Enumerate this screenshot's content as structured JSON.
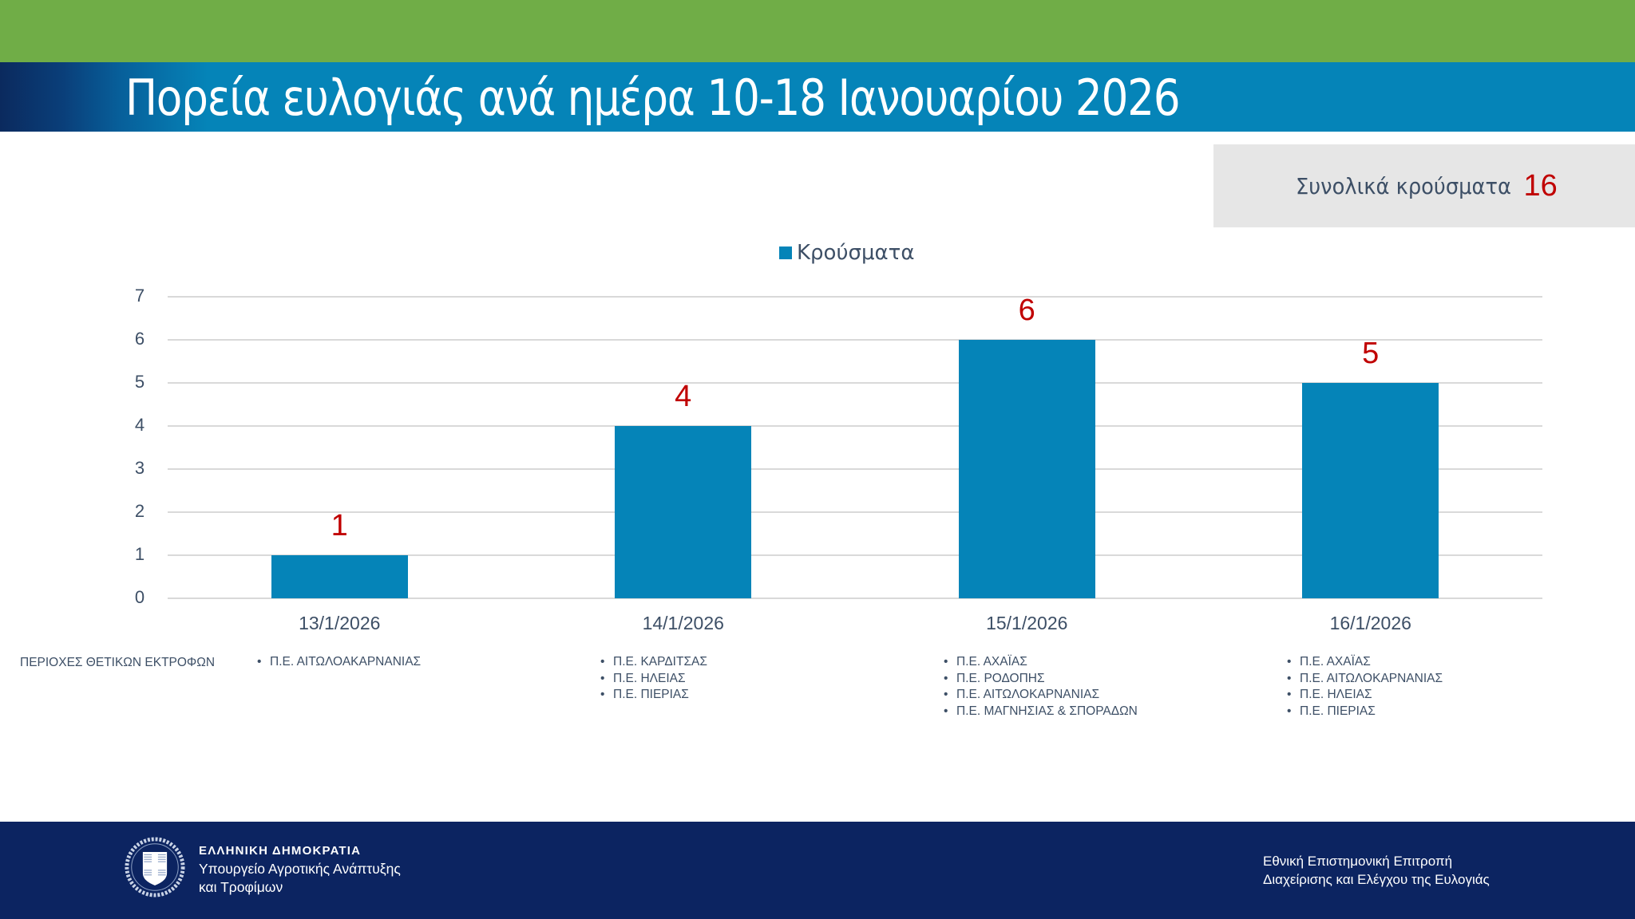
{
  "header": {
    "title": "Πορεία ευλογιάς ανά ημέρα 10-18 Ιανουαρίου 2026"
  },
  "summary": {
    "label": "Συνολικά κρούσματα",
    "value": "16"
  },
  "colors": {
    "top_band": "#70ad47",
    "title_band": "#0584b8",
    "bar": "#0584b8",
    "data_label": "#c00000",
    "footer": "#0c2461",
    "summary_box": "#e6e6e6"
  },
  "chart_data": {
    "type": "bar",
    "title": "",
    "legend": [
      "Κρούσματα"
    ],
    "legend_position": "top",
    "categories": [
      "13/1/2026",
      "14/1/2026",
      "15/1/2026",
      "16/1/2026"
    ],
    "series": [
      {
        "name": "Κρούσματα",
        "values": [
          1,
          4,
          6,
          5
        ]
      }
    ],
    "data_labels": [
      "1",
      "4",
      "6",
      "5"
    ],
    "xlabel": "",
    "ylabel": "",
    "ylim": [
      0,
      7
    ],
    "yticks": [
      "0",
      "1",
      "2",
      "3",
      "4",
      "5",
      "6",
      "7"
    ],
    "grid": true
  },
  "regions": {
    "title": "ΠΕΡΙΟΧΕΣ ΘΕΤΙΚΩΝ ΕΚΤΡΟΦΩΝ",
    "by_date": [
      {
        "date": "13/1/2026",
        "items": [
          "Π.Ε. ΑΙΤΩΛΟΑΚΑΡΝΑΝΙΑΣ"
        ]
      },
      {
        "date": "14/1/2026",
        "items": [
          "Π.Ε. ΚΑΡΔΙΤΣΑΣ",
          "Π.Ε. ΗΛΕΙΑΣ",
          "Π.Ε. ΠΙΕΡΙΑΣ"
        ]
      },
      {
        "date": "15/1/2026",
        "items": [
          "Π.Ε. ΑΧΑΪΑΣ",
          "Π.Ε. ΡΟΔΟΠΗΣ",
          "Π.Ε. ΑΙΤΩΛΟΚΑΡΝΑΝΙΑΣ",
          "Π.Ε. ΜΑΓΝΗΣΙΑΣ & ΣΠΟΡΑΔΩΝ"
        ]
      },
      {
        "date": "16/1/2026",
        "items": [
          "Π.Ε. ΑΧΑΪΑΣ",
          "Π.Ε. ΑΙΤΩΛΟΚΑΡΝΑΝΙΑΣ",
          "Π.Ε. ΗΛΕΙΑΣ",
          "Π.Ε. ΠΙΕΡΙΑΣ"
        ]
      }
    ]
  },
  "footer": {
    "emblem_icon": "greek-coat-of-arms-icon",
    "country": "ΕΛΛΗΝΙΚΗ ΔΗΜΟΚΡΑΤΙΑ",
    "ministry_line1": "Υπουργείο Αγροτικής Ανάπτυξης",
    "ministry_line2": "και Τροφίμων",
    "committee_line1": "Εθνική Επιστημονική Επιτροπή",
    "committee_line2": "Διαχείρισης και Ελέγχου της Ευλογιάς"
  }
}
